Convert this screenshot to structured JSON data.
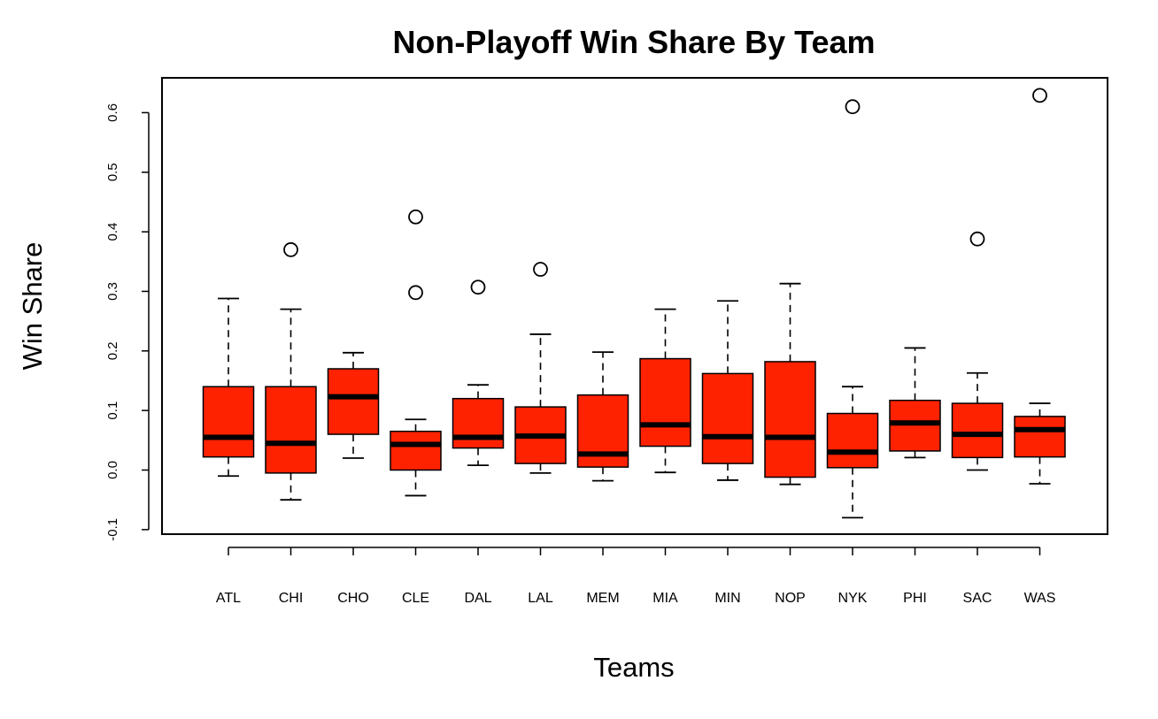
{
  "chart_data": {
    "type": "boxplot",
    "title": "Non-Playoff Win Share By Team",
    "xlabel": "Teams",
    "ylabel": "Win Share",
    "ylim": [
      -0.11,
      0.66
    ],
    "yticks": [
      -0.1,
      0.0,
      0.1,
      0.2,
      0.3,
      0.4,
      0.5,
      0.6
    ],
    "ytick_labels": [
      "-0.1",
      "0.0",
      "0.1",
      "0.2",
      "0.3",
      "0.4",
      "0.5",
      "0.6"
    ],
    "grid": false,
    "box_color": "#ff2200",
    "categories": [
      "ATL",
      "CHI",
      "CHO",
      "CLE",
      "DAL",
      "LAL",
      "MEM",
      "MIA",
      "MIN",
      "NOP",
      "NYK",
      "PHI",
      "SAC",
      "WAS"
    ],
    "boxes": [
      {
        "whisker_low": -0.01,
        "q1": 0.022,
        "median": 0.055,
        "q3": 0.14,
        "whisker_high": 0.288,
        "outliers": []
      },
      {
        "whisker_low": -0.05,
        "q1": -0.005,
        "median": 0.045,
        "q3": 0.14,
        "whisker_high": 0.27,
        "outliers": [
          0.37
        ]
      },
      {
        "whisker_low": 0.02,
        "q1": 0.06,
        "median": 0.123,
        "q3": 0.17,
        "whisker_high": 0.197,
        "outliers": []
      },
      {
        "whisker_low": -0.043,
        "q1": 0.0,
        "median": 0.043,
        "q3": 0.065,
        "whisker_high": 0.085,
        "outliers": [
          0.298,
          0.425
        ]
      },
      {
        "whisker_low": 0.008,
        "q1": 0.037,
        "median": 0.055,
        "q3": 0.12,
        "whisker_high": 0.143,
        "outliers": [
          0.307
        ]
      },
      {
        "whisker_low": -0.005,
        "q1": 0.011,
        "median": 0.057,
        "q3": 0.106,
        "whisker_high": 0.228,
        "outliers": [
          0.337
        ]
      },
      {
        "whisker_low": -0.018,
        "q1": 0.005,
        "median": 0.027,
        "q3": 0.126,
        "whisker_high": 0.198,
        "outliers": []
      },
      {
        "whisker_low": -0.004,
        "q1": 0.04,
        "median": 0.076,
        "q3": 0.187,
        "whisker_high": 0.27,
        "outliers": []
      },
      {
        "whisker_low": -0.017,
        "q1": 0.011,
        "median": 0.056,
        "q3": 0.162,
        "whisker_high": 0.284,
        "outliers": []
      },
      {
        "whisker_low": -0.024,
        "q1": -0.012,
        "median": 0.055,
        "q3": 0.182,
        "whisker_high": 0.313,
        "outliers": []
      },
      {
        "whisker_low": -0.08,
        "q1": 0.004,
        "median": 0.03,
        "q3": 0.095,
        "whisker_high": 0.14,
        "outliers": [
          0.61
        ]
      },
      {
        "whisker_low": 0.021,
        "q1": 0.032,
        "median": 0.079,
        "q3": 0.117,
        "whisker_high": 0.205,
        "outliers": []
      },
      {
        "whisker_low": 0.0,
        "q1": 0.021,
        "median": 0.06,
        "q3": 0.112,
        "whisker_high": 0.163,
        "outliers": [
          0.388
        ]
      },
      {
        "whisker_low": -0.023,
        "q1": 0.022,
        "median": 0.068,
        "q3": 0.09,
        "whisker_high": 0.112,
        "outliers": [
          0.629
        ]
      }
    ]
  }
}
